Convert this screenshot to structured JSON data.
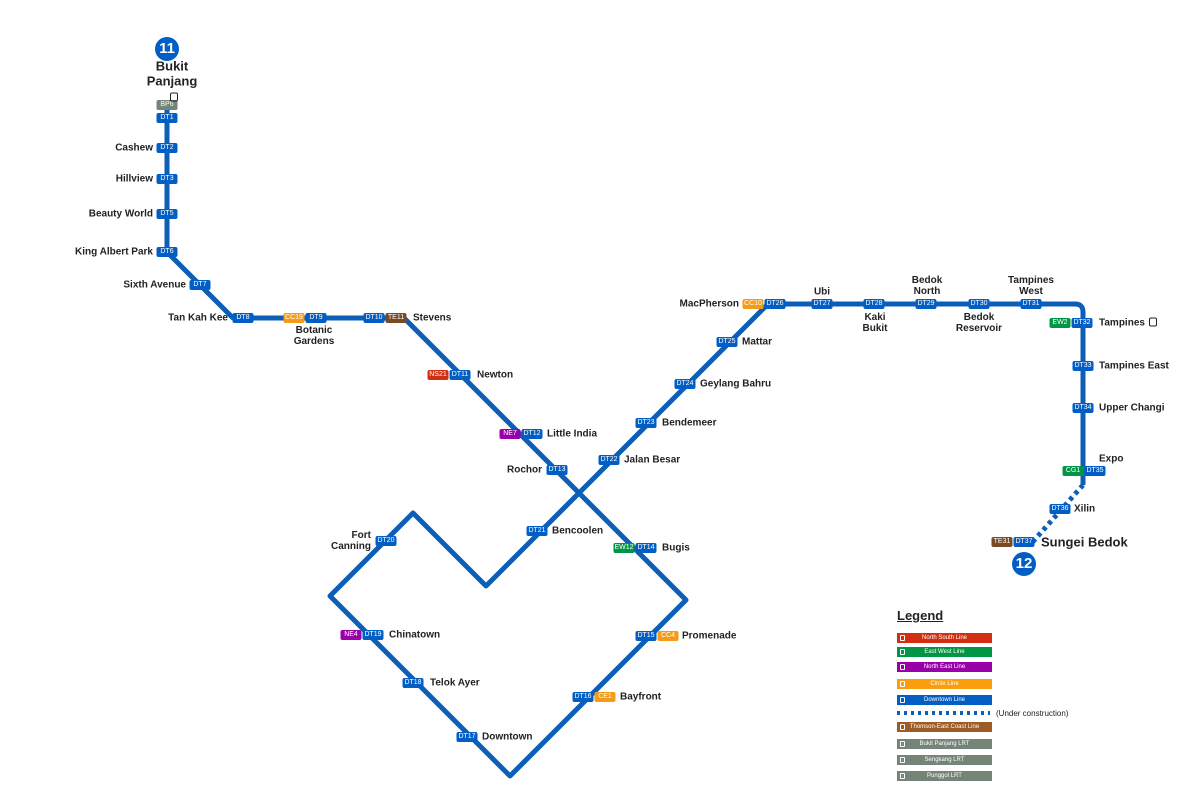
{
  "terminals": [
    {
      "label": "11"
    },
    {
      "label": "12"
    }
  ],
  "stations": [
    {
      "name": "Bukit Panjang",
      "codes": [
        {
          "text": "BP6",
          "color": "#748477"
        },
        {
          "text": "DT1",
          "color": "#005ec4"
        }
      ]
    },
    {
      "name": "Cashew",
      "codes": [
        {
          "text": "DT2",
          "color": "#005ec4"
        }
      ]
    },
    {
      "name": "Hillview",
      "codes": [
        {
          "text": "DT3",
          "color": "#005ec4"
        }
      ]
    },
    {
      "name": "Beauty World",
      "codes": [
        {
          "text": "DT5",
          "color": "#005ec4"
        }
      ]
    },
    {
      "name": "King Albert Park",
      "codes": [
        {
          "text": "DT6",
          "color": "#005ec4"
        }
      ]
    },
    {
      "name": "Sixth Avenue",
      "codes": [
        {
          "text": "DT7",
          "color": "#005ec4"
        }
      ]
    },
    {
      "name": "Tan Kah Kee",
      "codes": [
        {
          "text": "DT8",
          "color": "#005ec4"
        }
      ]
    },
    {
      "name": "Botanic Gardens",
      "codes": [
        {
          "text": "CC19",
          "color": "#f39c19"
        },
        {
          "text": "DT9",
          "color": "#005ec4"
        }
      ]
    },
    {
      "name": "Stevens",
      "codes": [
        {
          "text": "DT10",
          "color": "#005ec4"
        },
        {
          "text": "TE11",
          "color": "#7a4a25"
        }
      ]
    },
    {
      "name": "Newton",
      "codes": [
        {
          "text": "NS21",
          "color": "#d42e12"
        },
        {
          "text": "DT11",
          "color": "#005ec4"
        }
      ]
    },
    {
      "name": "Little India",
      "codes": [
        {
          "text": "NE7",
          "color": "#9900aa"
        },
        {
          "text": "DT12",
          "color": "#005ec4"
        }
      ]
    },
    {
      "name": "Rochor",
      "codes": [
        {
          "text": "DT13",
          "color": "#005ec4"
        }
      ]
    },
    {
      "name": "Bencoolen",
      "codes": [
        {
          "text": "DT21",
          "color": "#005ec4"
        }
      ]
    },
    {
      "name": "Jalan Besar",
      "codes": [
        {
          "text": "DT22",
          "color": "#005ec4"
        }
      ]
    },
    {
      "name": "Bugis",
      "codes": [
        {
          "text": "EW12",
          "color": "#009645"
        },
        {
          "text": "DT14",
          "color": "#005ec4"
        }
      ]
    },
    {
      "name": "Fort Canning",
      "codes": [
        {
          "text": "DT20",
          "color": "#005ec4"
        }
      ]
    },
    {
      "name": "Chinatown",
      "codes": [
        {
          "text": "NE4",
          "color": "#9900aa"
        },
        {
          "text": "DT19",
          "color": "#005ec4"
        }
      ]
    },
    {
      "name": "Telok Ayer",
      "codes": [
        {
          "text": "DT18",
          "color": "#005ec4"
        }
      ]
    },
    {
      "name": "Downtown",
      "codes": [
        {
          "text": "DT17",
          "color": "#005ec4"
        }
      ]
    },
    {
      "name": "Bayfront",
      "codes": [
        {
          "text": "DT16",
          "color": "#005ec4"
        },
        {
          "text": "CE1",
          "color": "#f39c19"
        }
      ]
    },
    {
      "name": "Promenade",
      "codes": [
        {
          "text": "DT15",
          "color": "#005ec4"
        },
        {
          "text": "CC4",
          "color": "#f39c19"
        }
      ]
    },
    {
      "name": "Bendemeer",
      "codes": [
        {
          "text": "DT23",
          "color": "#005ec4"
        }
      ]
    },
    {
      "name": "Geylang Bahru",
      "codes": [
        {
          "text": "DT24",
          "color": "#005ec4"
        }
      ]
    },
    {
      "name": "Mattar",
      "codes": [
        {
          "text": "DT25",
          "color": "#005ec4"
        }
      ]
    },
    {
      "name": "MacPherson",
      "codes": [
        {
          "text": "CC10",
          "color": "#f39c19"
        },
        {
          "text": "DT26",
          "color": "#005ec4"
        }
      ]
    },
    {
      "name": "Ubi",
      "codes": [
        {
          "text": "DT27",
          "color": "#005ec4"
        }
      ]
    },
    {
      "name": "Kaki Bukit",
      "codes": [
        {
          "text": "DT28",
          "color": "#005ec4"
        }
      ]
    },
    {
      "name": "Bedok North",
      "codes": [
        {
          "text": "DT29",
          "color": "#005ec4"
        }
      ]
    },
    {
      "name": "Bedok Reservoir",
      "codes": [
        {
          "text": "DT30",
          "color": "#005ec4"
        }
      ]
    },
    {
      "name": "Tampines West",
      "codes": [
        {
          "text": "DT31",
          "color": "#005ec4"
        }
      ]
    },
    {
      "name": "Tampines",
      "codes": [
        {
          "text": "EW2",
          "color": "#009645"
        },
        {
          "text": "DT32",
          "color": "#005ec4"
        }
      ]
    },
    {
      "name": "Tampines East",
      "codes": [
        {
          "text": "DT33",
          "color": "#005ec4"
        }
      ]
    },
    {
      "name": "Upper Changi",
      "codes": [
        {
          "text": "DT34",
          "color": "#005ec4"
        }
      ]
    },
    {
      "name": "Expo",
      "codes": [
        {
          "text": "CG1",
          "color": "#009645"
        },
        {
          "text": "DT35",
          "color": "#005ec4"
        }
      ]
    },
    {
      "name": "Xilin",
      "codes": [
        {
          "text": "DT36",
          "color": "#005ec4"
        }
      ]
    },
    {
      "name": "Sungei Bedok",
      "codes": [
        {
          "text": "TE31",
          "color": "#7a4a25"
        },
        {
          "text": "DT37",
          "color": "#005ec4"
        }
      ]
    }
  ],
  "legend": {
    "title": "Legend",
    "items": [
      {
        "label": "North South Line",
        "color": "#d42e12"
      },
      {
        "label": "East West Line",
        "color": "#009645"
      },
      {
        "label": "North East Line",
        "color": "#9900aa"
      },
      {
        "label": "Circle Line",
        "color": "#fa9e0d"
      },
      {
        "label": "Downtown Line",
        "color": "#005ec4"
      },
      {
        "label": "Thomson-East Coast Line",
        "color": "#9d5b25"
      },
      {
        "label": "Bukit Panjang LRT",
        "color": "#748477"
      },
      {
        "label": "Sengkang LRT",
        "color": "#748477"
      },
      {
        "label": "Punggol LRT",
        "color": "#748477"
      }
    ],
    "construction": "(Under construction)"
  }
}
